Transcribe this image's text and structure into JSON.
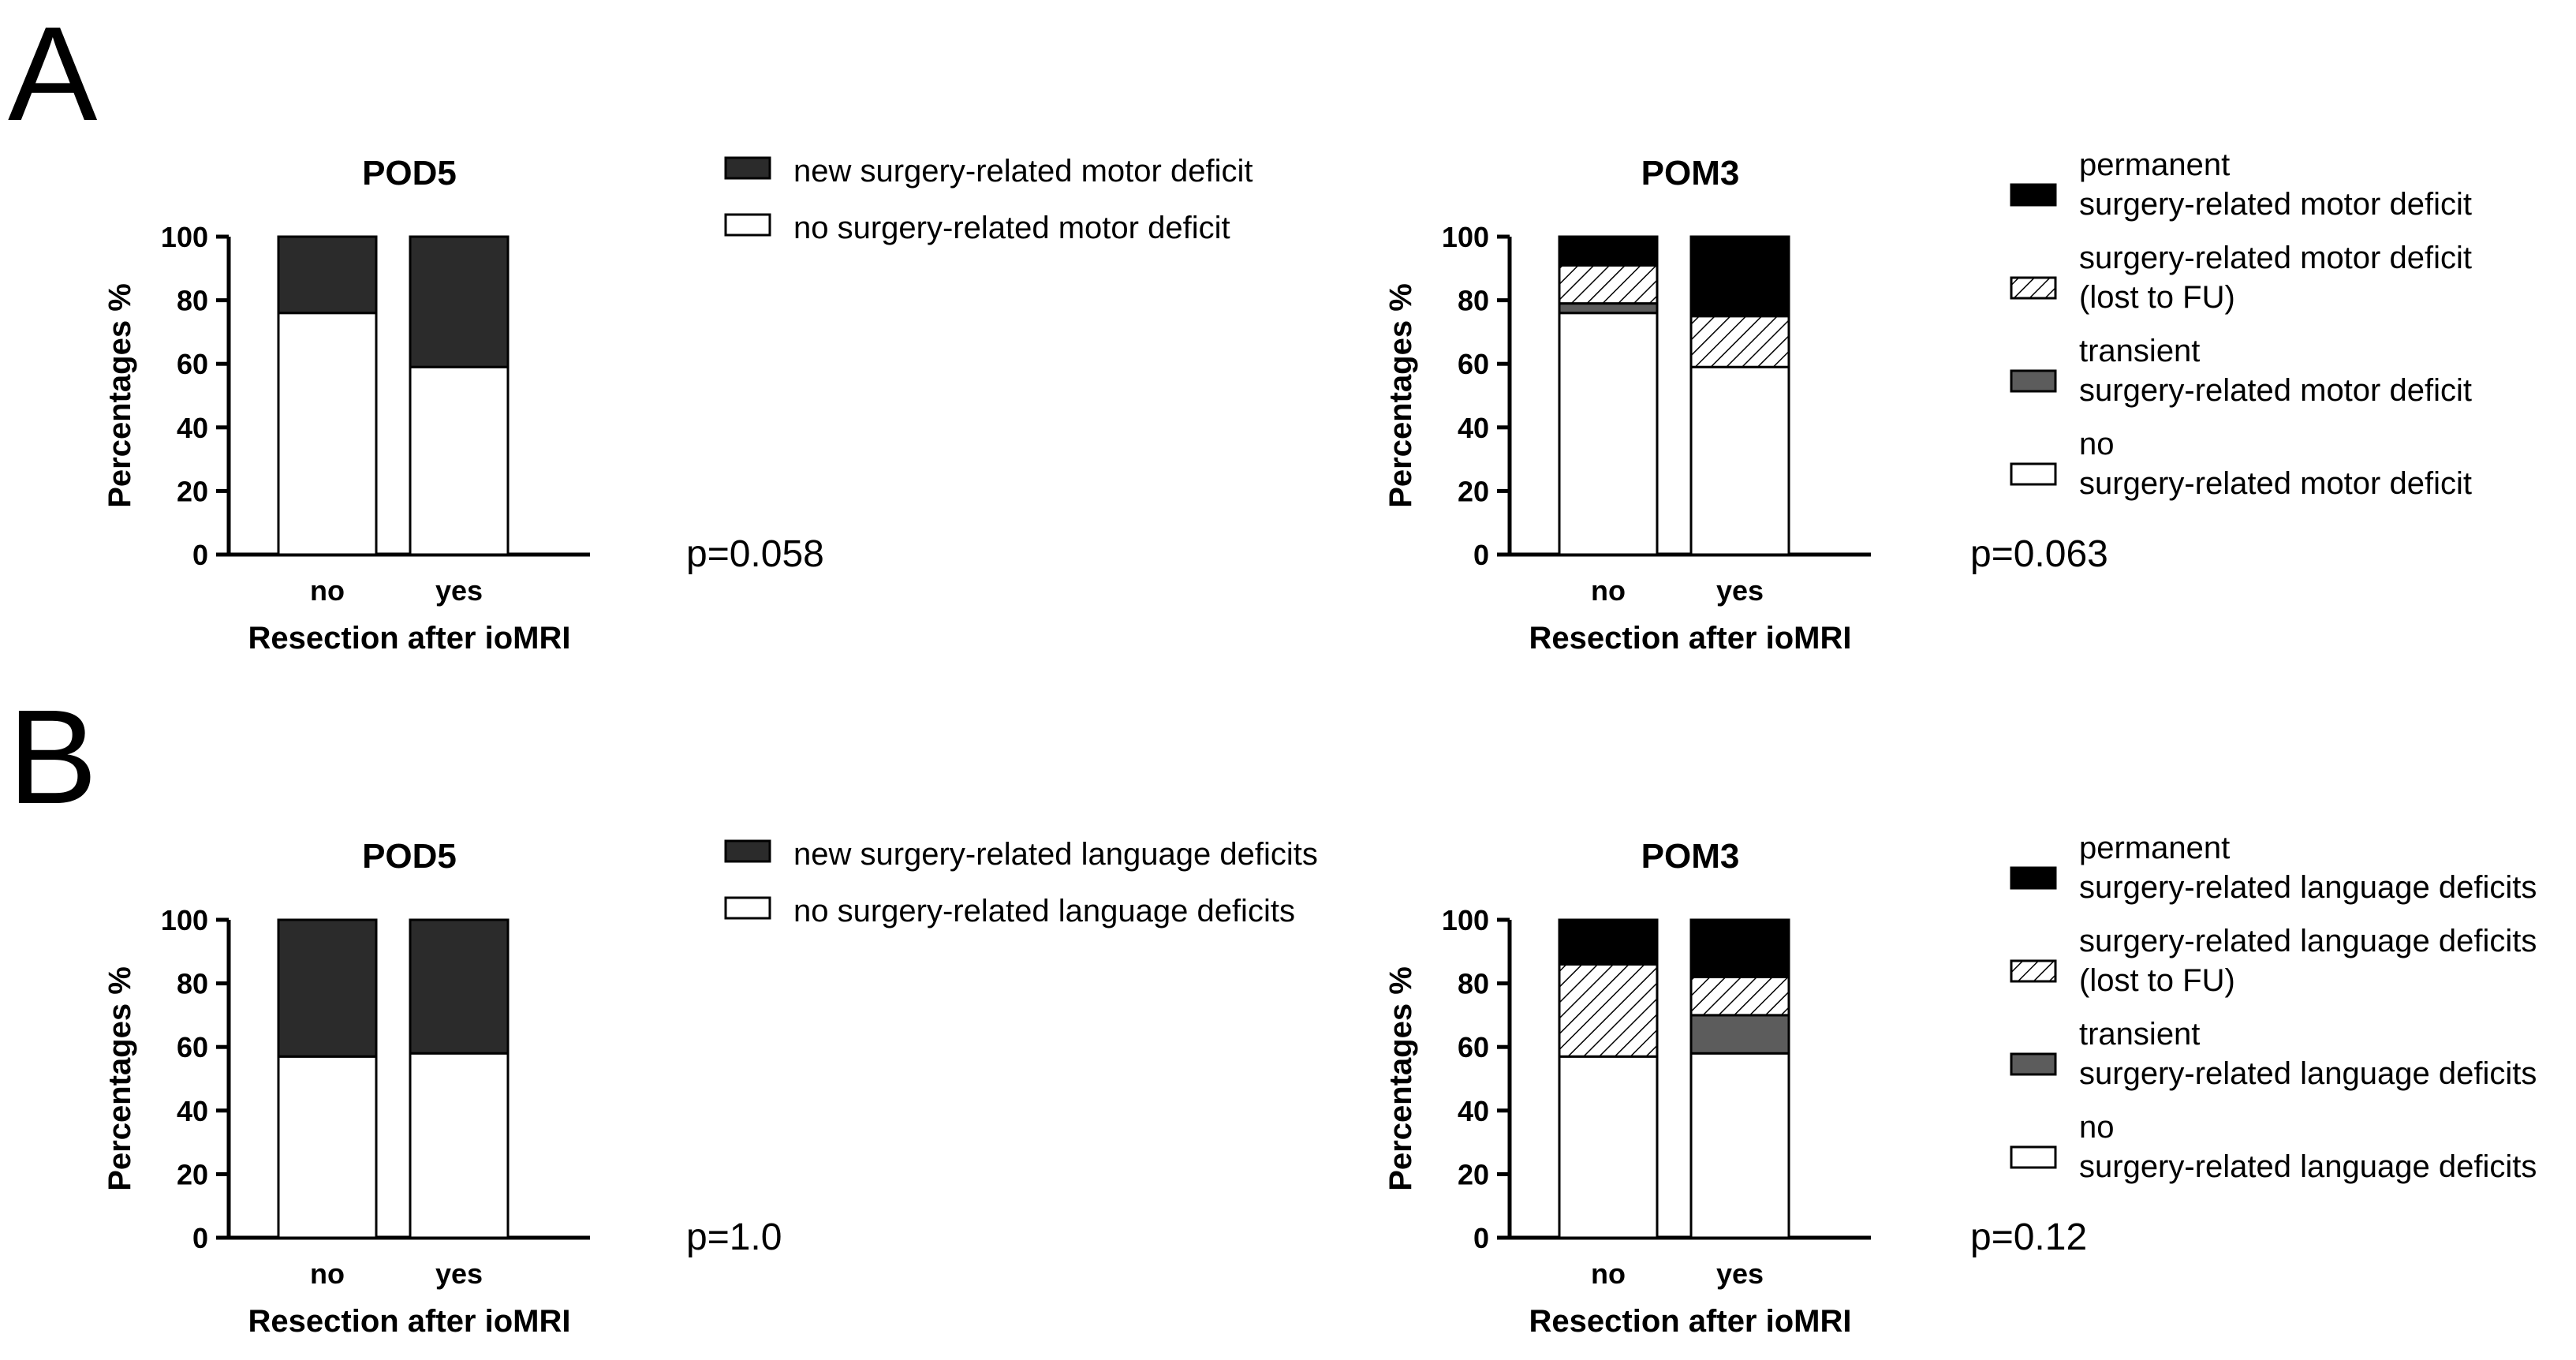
{
  "panels": [
    {
      "letter": "A",
      "charts": [
        {
          "type": "bar",
          "stacked": true,
          "title": "POD5",
          "xlabel": "Resection after ioMRI",
          "ylabel": "Percentages %",
          "ylim": [
            0,
            100
          ],
          "yticks": [
            "0",
            "20",
            "40",
            "60",
            "80",
            "100"
          ],
          "categories": [
            "no",
            "yes"
          ],
          "series": [
            {
              "name": "no surgery-related motor deficit",
              "values": [
                76,
                59
              ],
              "fill": "white"
            },
            {
              "name": "new surgery-related motor deficit",
              "values": [
                24,
                41
              ],
              "fill": "dark"
            }
          ],
          "p_value": "p=0.058",
          "grid": false,
          "legend_position": "right"
        },
        {
          "type": "bar",
          "stacked": true,
          "title": "POM3",
          "xlabel": "Resection after ioMRI",
          "ylabel": "Percentages %",
          "ylim": [
            0,
            100
          ],
          "yticks": [
            "0",
            "20",
            "40",
            "60",
            "80",
            "100"
          ],
          "categories": [
            "no",
            "yes"
          ],
          "series": [
            {
              "name": "no surgery-related motor deficit",
              "values": [
                76,
                59
              ],
              "fill": "white"
            },
            {
              "name": "transient surgery-related motor deficit",
              "values": [
                3,
                0
              ],
              "fill": "gray"
            },
            {
              "name": "surgery-related motor deficit (lost to FU)",
              "values": [
                12,
                16
              ],
              "fill": "hatch"
            },
            {
              "name": "permanent surgery-related motor deficit",
              "values": [
                9,
                25
              ],
              "fill": "black"
            }
          ],
          "p_value": "p=0.063",
          "grid": false,
          "legend_position": "right"
        }
      ],
      "legends": [
        [
          {
            "lines": [
              "new surgery-related motor deficit"
            ],
            "fill": "dark"
          },
          {
            "lines": [
              "no surgery-related motor deficit"
            ],
            "fill": "white"
          }
        ],
        [
          {
            "lines": [
              "permanent",
              "surgery-related motor deficit"
            ],
            "fill": "black"
          },
          {
            "lines": [
              "surgery-related motor deficit",
              "(lost to FU)"
            ],
            "fill": "hatch"
          },
          {
            "lines": [
              "transient",
              "surgery-related motor deficit"
            ],
            "fill": "gray"
          },
          {
            "lines": [
              "no",
              "surgery-related motor deficit"
            ],
            "fill": "white"
          }
        ]
      ]
    },
    {
      "letter": "B",
      "charts": [
        {
          "type": "bar",
          "stacked": true,
          "title": "POD5",
          "xlabel": "Resection after ioMRI",
          "ylabel": "Percentages %",
          "ylim": [
            0,
            100
          ],
          "yticks": [
            "0",
            "20",
            "40",
            "60",
            "80",
            "100"
          ],
          "categories": [
            "no",
            "yes"
          ],
          "series": [
            {
              "name": "no surgery-related language deficits",
              "values": [
                57,
                58
              ],
              "fill": "white"
            },
            {
              "name": "new surgery-related language deficits",
              "values": [
                43,
                42
              ],
              "fill": "dark"
            }
          ],
          "p_value": "p=1.0",
          "grid": false,
          "legend_position": "right"
        },
        {
          "type": "bar",
          "stacked": true,
          "title": "POM3",
          "xlabel": "Resection after ioMRI",
          "ylabel": "Percentages %",
          "ylim": [
            0,
            100
          ],
          "yticks": [
            "0",
            "20",
            "40",
            "60",
            "80",
            "100"
          ],
          "categories": [
            "no",
            "yes"
          ],
          "series": [
            {
              "name": "no surgery-related language deficits",
              "values": [
                57,
                58
              ],
              "fill": "white"
            },
            {
              "name": "transient surgery-related language deficits",
              "values": [
                0,
                12
              ],
              "fill": "gray"
            },
            {
              "name": "surgery-related language deficits (lost to FU)",
              "values": [
                29,
                12
              ],
              "fill": "hatch"
            },
            {
              "name": "permanent surgery-related language deficits",
              "values": [
                14,
                18
              ],
              "fill": "black"
            }
          ],
          "p_value": "p=0.12",
          "grid": false,
          "legend_position": "right"
        }
      ],
      "legends": [
        [
          {
            "lines": [
              "new surgery-related language deficits"
            ],
            "fill": "dark"
          },
          {
            "lines": [
              "no surgery-related language deficits"
            ],
            "fill": "white"
          }
        ],
        [
          {
            "lines": [
              "permanent",
              "surgery-related language deficits"
            ],
            "fill": "black"
          },
          {
            "lines": [
              "surgery-related language deficits",
              "(lost to FU)"
            ],
            "fill": "hatch"
          },
          {
            "lines": [
              "transient",
              "surgery-related language deficits"
            ],
            "fill": "gray"
          },
          {
            "lines": [
              "no",
              "surgery-related language deficits"
            ],
            "fill": "white"
          }
        ]
      ]
    }
  ],
  "colors": {
    "white": "#ffffff",
    "dark": "#2b2b2b",
    "gray": "#5c5c5c",
    "black": "#000000",
    "hatch_line": "#000000",
    "outline": "#000000"
  },
  "chart_data": [
    {
      "type": "bar",
      "title": "POD5",
      "categories": [
        "no",
        "yes"
      ],
      "series": [
        {
          "name": "no surgery-related motor deficit",
          "values": [
            76,
            59
          ]
        },
        {
          "name": "new surgery-related motor deficit",
          "values": [
            24,
            41
          ]
        }
      ],
      "xlabel": "Resection after ioMRI",
      "ylabel": "Percentages %",
      "ylim": [
        0,
        100
      ]
    },
    {
      "type": "bar",
      "title": "POM3",
      "categories": [
        "no",
        "yes"
      ],
      "series": [
        {
          "name": "no surgery-related motor deficit",
          "values": [
            76,
            59
          ]
        },
        {
          "name": "transient surgery-related motor deficit",
          "values": [
            3,
            0
          ]
        },
        {
          "name": "surgery-related motor deficit (lost to FU)",
          "values": [
            12,
            16
          ]
        },
        {
          "name": "permanent surgery-related motor deficit",
          "values": [
            9,
            25
          ]
        }
      ],
      "xlabel": "Resection after ioMRI",
      "ylabel": "Percentages %",
      "ylim": [
        0,
        100
      ]
    },
    {
      "type": "bar",
      "title": "POD5",
      "categories": [
        "no",
        "yes"
      ],
      "series": [
        {
          "name": "no surgery-related language deficits",
          "values": [
            57,
            58
          ]
        },
        {
          "name": "new surgery-related language deficits",
          "values": [
            43,
            42
          ]
        }
      ],
      "xlabel": "Resection after ioMRI",
      "ylabel": "Percentages %",
      "ylim": [
        0,
        100
      ]
    },
    {
      "type": "bar",
      "title": "POM3",
      "categories": [
        "no",
        "yes"
      ],
      "series": [
        {
          "name": "no surgery-related language deficits",
          "values": [
            57,
            58
          ]
        },
        {
          "name": "transient surgery-related language deficits",
          "values": [
            0,
            12
          ]
        },
        {
          "name": "surgery-related language deficits (lost to FU)",
          "values": [
            29,
            12
          ]
        },
        {
          "name": "permanent surgery-related language deficits",
          "values": [
            14,
            18
          ]
        }
      ],
      "xlabel": "Resection after ioMRI",
      "ylabel": "Percentages %",
      "ylim": [
        0,
        100
      ]
    }
  ]
}
